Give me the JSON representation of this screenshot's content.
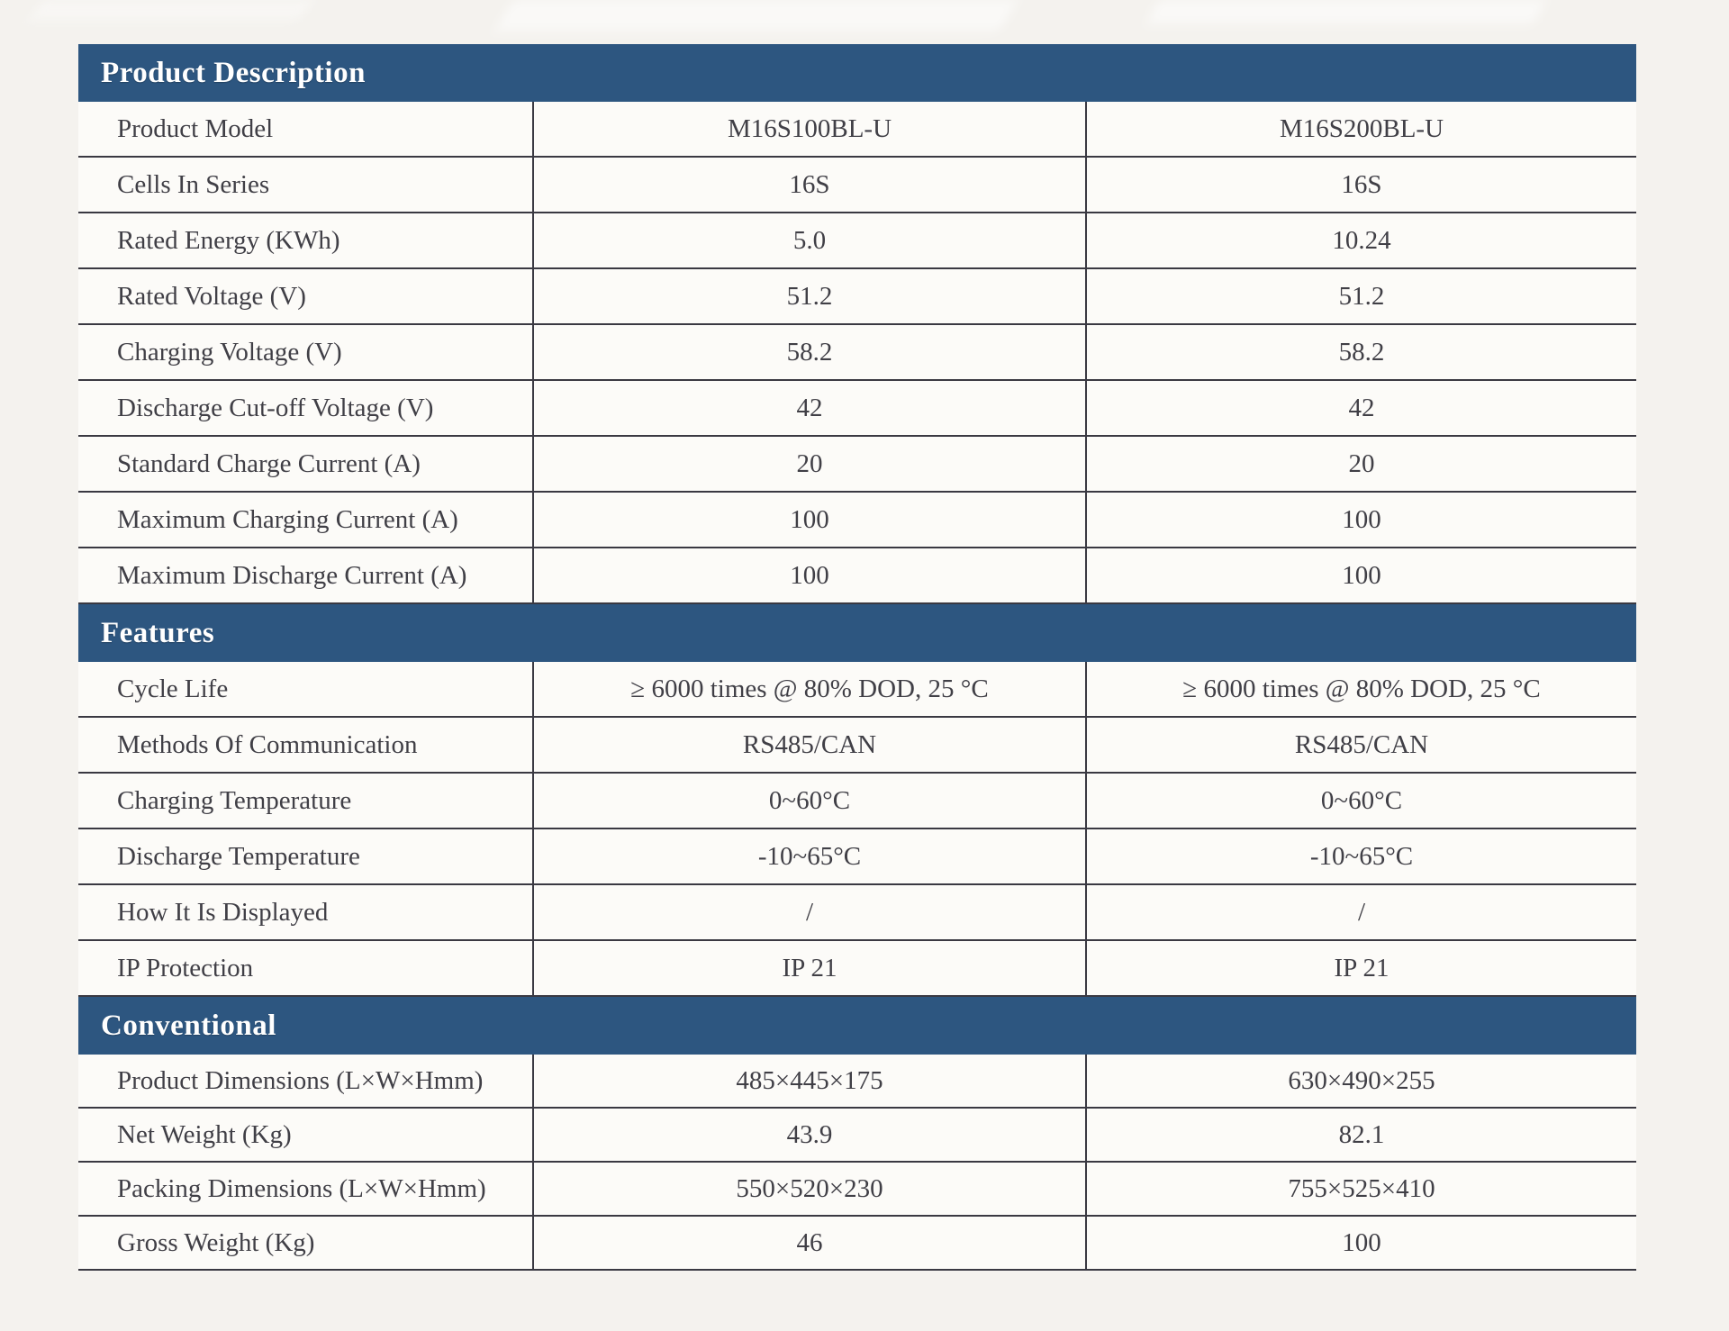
{
  "theme": {
    "header_bg": "#2d5680",
    "header_text": "#ffffff",
    "row_text": "#403f46",
    "border_color": "#3a3942",
    "row_bg": "#fcfbf8",
    "page_bg": "#f4f2ee"
  },
  "table": {
    "sections": [
      {
        "title": "Product Description",
        "rows": [
          {
            "label": "Product Model",
            "values": [
              "M16S100BL-U",
              "M16S200BL-U"
            ]
          },
          {
            "label": "Cells In Series",
            "values": [
              "16S",
              "16S"
            ]
          },
          {
            "label": "Rated Energy (KWh)",
            "values": [
              "5.0",
              "10.24"
            ]
          },
          {
            "label": "Rated Voltage (V)",
            "values": [
              "51.2",
              "51.2"
            ]
          },
          {
            "label": "Charging Voltage (V)",
            "values": [
              "58.2",
              "58.2"
            ]
          },
          {
            "label": "Discharge Cut-off Voltage (V)",
            "values": [
              "42",
              "42"
            ]
          },
          {
            "label": "Standard Charge Current (A)",
            "values": [
              "20",
              "20"
            ]
          },
          {
            "label": "Maximum Charging Current (A)",
            "values": [
              "100",
              "100"
            ]
          },
          {
            "label": "Maximum Discharge Current (A)",
            "values": [
              "100",
              "100"
            ]
          }
        ]
      },
      {
        "title": "Features",
        "rows": [
          {
            "label": "Cycle Life",
            "values": [
              "≥ 6000 times @ 80% DOD, 25 °C",
              "≥ 6000 times @ 80% DOD, 25 °C"
            ]
          },
          {
            "label": "Methods Of Communication",
            "values": [
              "RS485/CAN",
              "RS485/CAN"
            ]
          },
          {
            "label": "Charging Temperature",
            "values": [
              "0~60°C",
              "0~60°C"
            ]
          },
          {
            "label": "Discharge Temperature",
            "values": [
              "-10~65°C",
              "-10~65°C"
            ]
          },
          {
            "label": "How It Is Displayed",
            "values": [
              "/",
              "/"
            ]
          },
          {
            "label": "IP Protection",
            "values": [
              "IP 21",
              "IP 21"
            ]
          }
        ]
      },
      {
        "title": "Conventional",
        "rows": [
          {
            "label": "Product Dimensions (L×W×Hmm)",
            "values": [
              "485×445×175",
              "630×490×255"
            ]
          },
          {
            "label": "Net Weight (Kg)",
            "values": [
              "43.9",
              "82.1"
            ]
          },
          {
            "label": "Packing Dimensions (L×W×Hmm)",
            "values": [
              "550×520×230",
              "755×525×410"
            ]
          },
          {
            "label": "Gross Weight (Kg)",
            "values": [
              "46",
              "100"
            ]
          }
        ]
      }
    ]
  }
}
